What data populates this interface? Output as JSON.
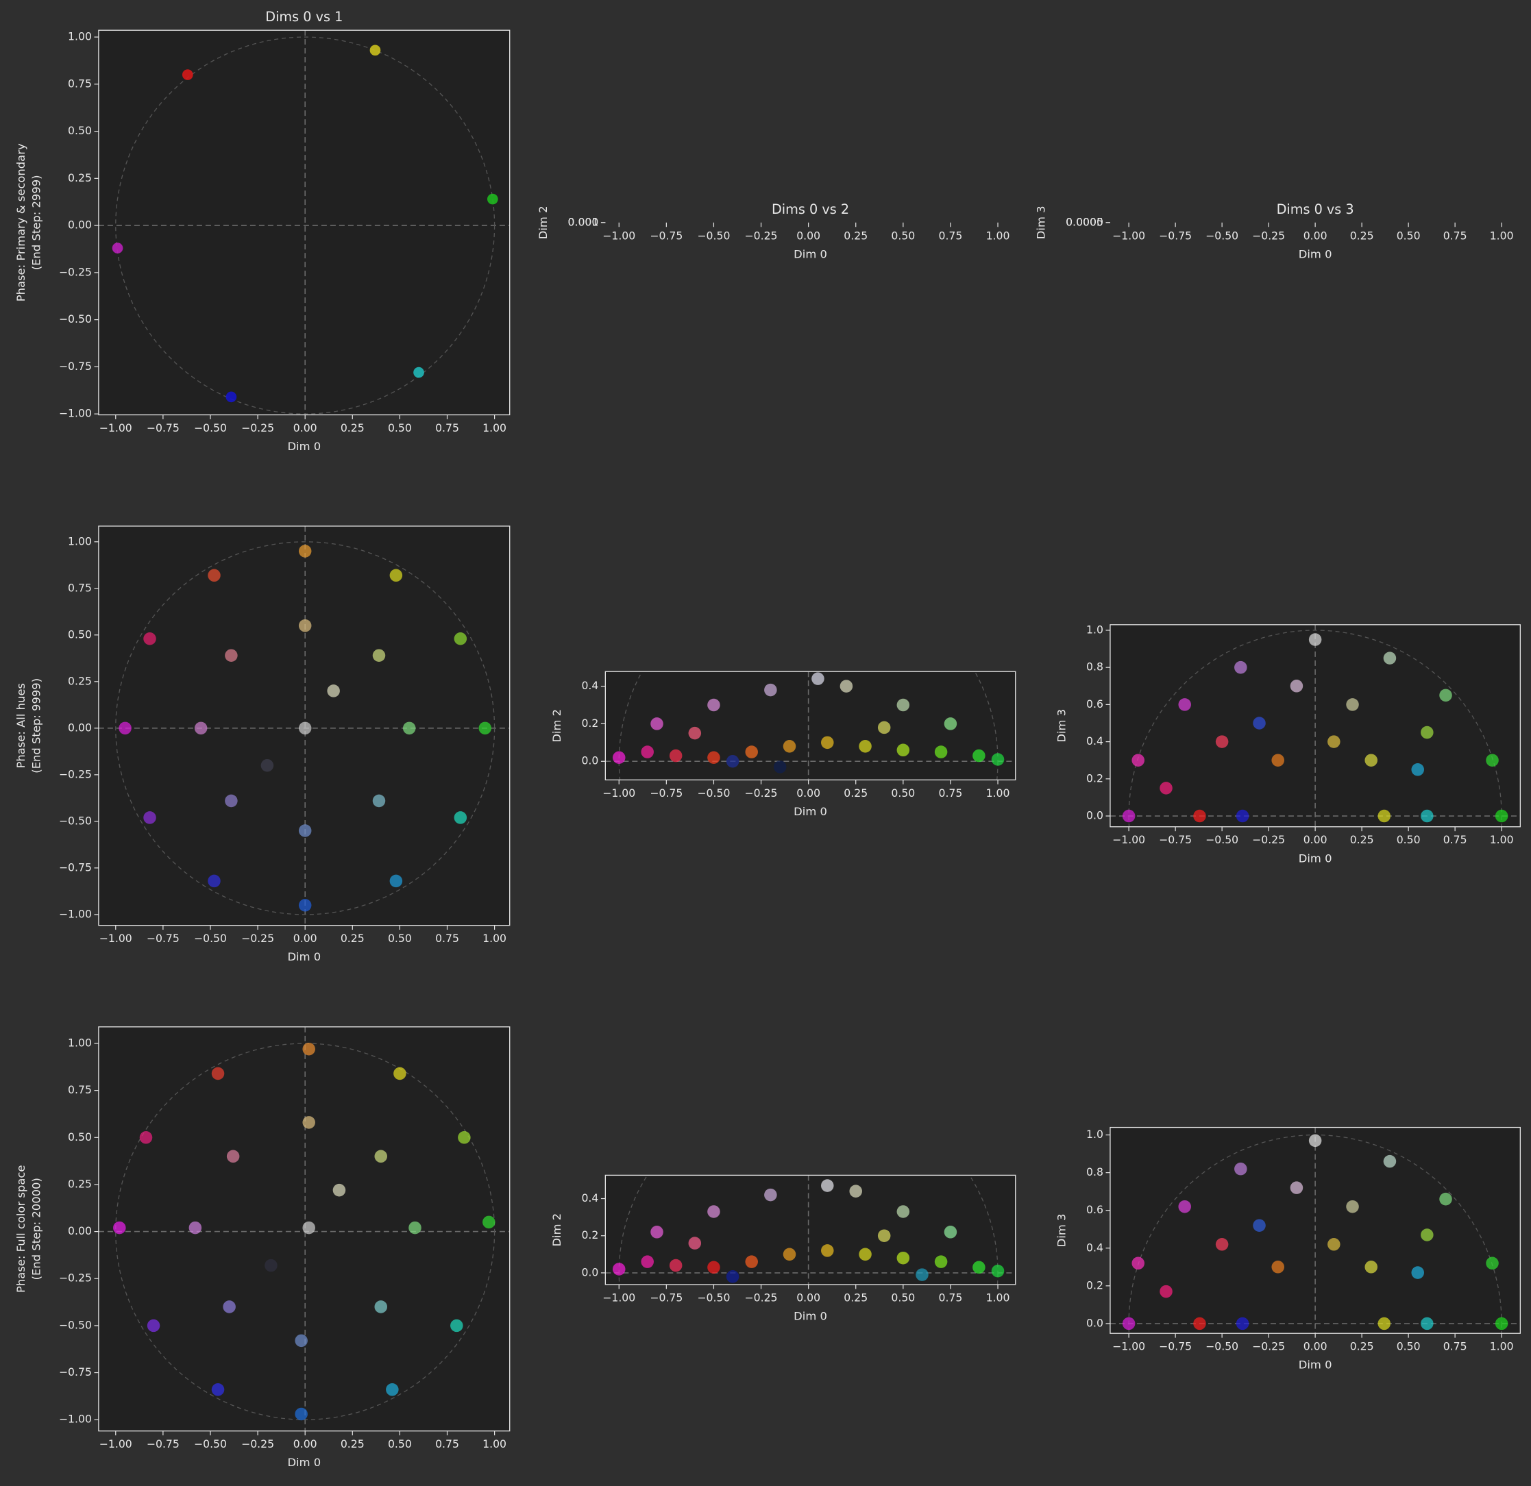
{
  "chart_data": [
    {
      "type": "scatter",
      "title": "Dims 0 vs 1",
      "xlabel": "Dim 0",
      "ylabel": [
        "Phase: Primary & secondary",
        "(End Step: 2999)"
      ],
      "xlim": [
        -1.09,
        1.08
      ],
      "ylim": [
        -1.005,
        1.036
      ],
      "xticks": [
        {
          "value": -1,
          "label": "−1.00"
        },
        {
          "value": -0.75,
          "label": "−0.75"
        },
        {
          "value": -0.5,
          "label": "−0.50"
        },
        {
          "value": -0.25,
          "label": "−0.25"
        },
        {
          "value": 0,
          "label": "0.00"
        },
        {
          "value": 0.25,
          "label": "0.25"
        },
        {
          "value": 0.5,
          "label": "0.50"
        },
        {
          "value": 0.75,
          "label": "0.75"
        },
        {
          "value": 1,
          "label": "1.00"
        }
      ],
      "yticks": [
        {
          "value": -1,
          "label": "−1.00"
        },
        {
          "value": -0.75,
          "label": "−0.75"
        },
        {
          "value": -0.5,
          "label": "−0.50"
        },
        {
          "value": -0.25,
          "label": "−0.25"
        },
        {
          "value": 0,
          "label": "0.00"
        },
        {
          "value": 0.25,
          "label": "0.25"
        },
        {
          "value": 0.5,
          "label": "0.50"
        },
        {
          "value": 0.75,
          "label": "0.75"
        },
        {
          "value": 1,
          "label": "1.00"
        }
      ],
      "x": [
        -0.62,
        0.37,
        0.99,
        -0.99,
        -0.39,
        0.6
      ],
      "y": [
        0.8,
        0.93,
        0.14,
        -0.12,
        -0.91,
        -0.78
      ],
      "colors": [
        "#e01818",
        "#d4c81c",
        "#1fc01f",
        "#c020c0",
        "#1414d0",
        "#20c0c0"
      ]
    },
    {
      "type": "scatter",
      "title": "Dims 0 vs 2",
      "xlabel": "Dim 0",
      "ylabel": "Dim 2",
      "xlim": [
        -1.072,
        1.093
      ],
      "ylim": [
        0,
        0.001
      ],
      "xticks": [
        {
          "value": -1,
          "label": "−1.00"
        },
        {
          "value": -0.75,
          "label": "−0.75"
        },
        {
          "value": -0.5,
          "label": "−0.50"
        },
        {
          "value": -0.25,
          "label": "−0.25"
        },
        {
          "value": 0,
          "label": "0.00"
        },
        {
          "value": 0.25,
          "label": "0.25"
        },
        {
          "value": 0.5,
          "label": "0.50"
        },
        {
          "value": 0.75,
          "label": "0.75"
        },
        {
          "value": 1,
          "label": "1.00"
        }
      ],
      "yticks": [
        {
          "value": 0,
          "label": "0.000"
        },
        {
          "value": 0.001,
          "label": "0.001"
        }
      ]
    },
    {
      "type": "scatter",
      "title": "Dims 0 vs 3",
      "xlabel": "Dim 0",
      "ylabel": "Dim 3",
      "xlim": [
        -1.1,
        1.1
      ],
      "ylim": [
        0,
        0.0005
      ],
      "xticks": [
        {
          "value": -1,
          "label": "−1.00"
        },
        {
          "value": -0.75,
          "label": "−0.75"
        },
        {
          "value": -0.5,
          "label": "−0.50"
        },
        {
          "value": -0.25,
          "label": "−0.25"
        },
        {
          "value": 0,
          "label": "0.00"
        },
        {
          "value": 0.25,
          "label": "0.25"
        },
        {
          "value": 0.5,
          "label": "0.50"
        },
        {
          "value": 0.75,
          "label": "0.75"
        },
        {
          "value": 1,
          "label": "1.00"
        }
      ],
      "yticks": [
        {
          "value": 0,
          "label": "0.0000"
        },
        {
          "value": 0.0005,
          "label": "0.0005"
        }
      ]
    },
    {
      "type": "scatter",
      "xlabel": "Dim 0",
      "ylabel": [
        "Phase: All hues",
        "(End Step: 9999)"
      ],
      "xlim": [
        -1.09,
        1.08
      ],
      "ylim": [
        -1.058,
        1.084
      ],
      "xticks": [
        {
          "value": -1,
          "label": "−1.00"
        },
        {
          "value": -0.75,
          "label": "−0.75"
        },
        {
          "value": -0.5,
          "label": "−0.50"
        },
        {
          "value": -0.25,
          "label": "−0.25"
        },
        {
          "value": 0,
          "label": "0.00"
        },
        {
          "value": 0.25,
          "label": "0.25"
        },
        {
          "value": 0.5,
          "label": "0.50"
        },
        {
          "value": 0.75,
          "label": "0.75"
        },
        {
          "value": 1,
          "label": "1.00"
        }
      ],
      "yticks": [
        {
          "value": -1,
          "label": "−1.00"
        },
        {
          "value": -0.75,
          "label": "−0.75"
        },
        {
          "value": -0.5,
          "label": "−0.50"
        },
        {
          "value": -0.25,
          "label": "−0.25"
        },
        {
          "value": 0,
          "label": "0.00"
        },
        {
          "value": 0.25,
          "label": "0.25"
        },
        {
          "value": 0.5,
          "label": "0.50"
        },
        {
          "value": 0.75,
          "label": "0.75"
        },
        {
          "value": 1,
          "label": "1.00"
        }
      ],
      "x": [
        0.95,
        0.82,
        0.48,
        0,
        -0.48,
        -0.82,
        -0.95,
        -0.82,
        -0.48,
        0,
        0.48,
        0.82,
        0.55,
        0.39,
        0,
        -0.39,
        -0.55,
        -0.39,
        0,
        0.39,
        0,
        0.15,
        -0.2
      ],
      "y": [
        0,
        0.48,
        0.82,
        0.95,
        0.82,
        0.48,
        0,
        -0.48,
        -0.82,
        -0.95,
        -0.82,
        -0.48,
        0,
        0.39,
        0.55,
        0.39,
        0,
        -0.39,
        -0.55,
        -0.39,
        0,
        0.2,
        -0.2
      ],
      "colors": [
        "#30e030",
        "#90e030",
        "#e0e020",
        "#f0a030",
        "#f05030",
        "#f02070",
        "#e020e0",
        "#9030e0",
        "#3030e0",
        "#2060e0",
        "#20a0e0",
        "#20e0c0",
        "#80e080",
        "#d0e080",
        "#e0c080",
        "#e08090",
        "#d080d0",
        "#9080d0",
        "#7090d0",
        "#80c0d0",
        "#d0d0d0",
        "#e0e0c0",
        "#404050"
      ]
    },
    {
      "type": "scatter",
      "xlabel": "Dim 0",
      "ylabel": "Dim 2",
      "xlim": [
        -1.072,
        1.093
      ],
      "ylim": [
        -0.099,
        0.478
      ],
      "xticks": [
        {
          "value": -1,
          "label": "−1.00"
        },
        {
          "value": -0.75,
          "label": "−0.75"
        },
        {
          "value": -0.5,
          "label": "−0.50"
        },
        {
          "value": -0.25,
          "label": "−0.25"
        },
        {
          "value": 0,
          "label": "0.00"
        },
        {
          "value": 0.25,
          "label": "0.25"
        },
        {
          "value": 0.5,
          "label": "0.50"
        },
        {
          "value": 0.75,
          "label": "0.75"
        },
        {
          "value": 1,
          "label": "1.00"
        }
      ],
      "yticks": [
        {
          "value": 0,
          "label": "0.0"
        },
        {
          "value": 0.2,
          "label": "0.2"
        },
        {
          "value": 0.4,
          "label": "0.4"
        }
      ],
      "x": [
        -1,
        -0.85,
        -0.7,
        -0.5,
        -0.3,
        -0.1,
        0.1,
        0.3,
        0.5,
        0.7,
        0.9,
        1,
        -0.8,
        -0.5,
        -0.2,
        0.05,
        0.2,
        0.5,
        0.75,
        -0.6,
        0.4,
        -0.15,
        -0.4
      ],
      "y": [
        0.02,
        0.05,
        0.03,
        0.02,
        0.05,
        0.08,
        0.1,
        0.08,
        0.06,
        0.05,
        0.03,
        0.01,
        0.2,
        0.3,
        0.38,
        0.44,
        0.4,
        0.3,
        0.2,
        0.15,
        0.18,
        -0.03,
        0
      ],
      "colors": [
        "#ff20e0",
        "#ff20a0",
        "#ff3050",
        "#ff4020",
        "#ff7020",
        "#f0a020",
        "#f0c020",
        "#e0e020",
        "#b0f020",
        "#70f020",
        "#30f030",
        "#20e040",
        "#f060e0",
        "#e090e0",
        "#d0b0e0",
        "#e0e0f0",
        "#e0e0c0",
        "#c0e0b0",
        "#90f090",
        "#ff6080",
        "#e0e060",
        "#102050",
        "#2030a0"
      ]
    },
    {
      "type": "scatter",
      "xlabel": "Dim 0",
      "ylabel": "Dim 3",
      "xlim": [
        -1.1,
        1.1
      ],
      "ylim": [
        -0.058,
        1.03
      ],
      "xticks": [
        {
          "value": -1,
          "label": "−1.00"
        },
        {
          "value": -0.75,
          "label": "−0.75"
        },
        {
          "value": -0.5,
          "label": "−0.50"
        },
        {
          "value": -0.25,
          "label": "−0.25"
        },
        {
          "value": 0,
          "label": "0.00"
        },
        {
          "value": 0.25,
          "label": "0.25"
        },
        {
          "value": 0.5,
          "label": "0.50"
        },
        {
          "value": 0.75,
          "label": "0.75"
        },
        {
          "value": 1,
          "label": "1.00"
        }
      ],
      "yticks": [
        {
          "value": 0,
          "label": "0.0"
        },
        {
          "value": 0.2,
          "label": "0.2"
        },
        {
          "value": 0.4,
          "label": "0.4"
        },
        {
          "value": 0.6,
          "label": "0.6"
        },
        {
          "value": 0.8,
          "label": "0.8"
        },
        {
          "value": 1,
          "label": "1.0"
        }
      ],
      "x": [
        -1,
        -0.62,
        -0.39,
        0.37,
        0.6,
        1,
        -0.95,
        -0.7,
        -0.4,
        0,
        0.4,
        0.7,
        0.95,
        -0.5,
        -0.2,
        0.1,
        0.3,
        0.55,
        -0.3,
        0.2,
        -0.1,
        0.6,
        -0.8
      ],
      "y": [
        0,
        0,
        0,
        0,
        0,
        0,
        0.3,
        0.6,
        0.8,
        0.95,
        0.85,
        0.65,
        0.3,
        0.4,
        0.3,
        0.4,
        0.3,
        0.25,
        0.5,
        0.6,
        0.7,
        0.45,
        0.15
      ],
      "colors": [
        "#e020e0",
        "#ff2020",
        "#2020e0",
        "#e0e020",
        "#20d0d0",
        "#20e020",
        "#ff30c0",
        "#e040e0",
        "#c080e0",
        "#e0e0e0",
        "#c0e0c0",
        "#80e080",
        "#30e030",
        "#ff4060",
        "#f08020",
        "#e0c040",
        "#e0e040",
        "#20b0e0",
        "#3050e0",
        "#d0d0a0",
        "#e0c0e0",
        "#a0e040",
        "#ff2080"
      ]
    },
    {
      "type": "scatter",
      "xlabel": "Dim 0",
      "ylabel": [
        "Phase: Full color space",
        "(End Step: 20000)"
      ],
      "xlim": [
        -1.09,
        1.08
      ],
      "ylim": [
        -1.06,
        1.088
      ],
      "xticks": [
        {
          "value": -1,
          "label": "−1.00"
        },
        {
          "value": -0.75,
          "label": "−0.75"
        },
        {
          "value": -0.5,
          "label": "−0.50"
        },
        {
          "value": -0.25,
          "label": "−0.25"
        },
        {
          "value": 0,
          "label": "0.00"
        },
        {
          "value": 0.25,
          "label": "0.25"
        },
        {
          "value": 0.5,
          "label": "0.50"
        },
        {
          "value": 0.75,
          "label": "0.75"
        },
        {
          "value": 1,
          "label": "1.00"
        }
      ],
      "yticks": [
        {
          "value": -1,
          "label": "−1.00"
        },
        {
          "value": -0.75,
          "label": "−0.75"
        },
        {
          "value": -0.5,
          "label": "−0.50"
        },
        {
          "value": -0.25,
          "label": "−0.25"
        },
        {
          "value": 0,
          "label": "0.00"
        },
        {
          "value": 0.25,
          "label": "0.25"
        },
        {
          "value": 0.5,
          "label": "0.50"
        },
        {
          "value": 0.75,
          "label": "0.75"
        },
        {
          "value": 1,
          "label": "1.00"
        }
      ],
      "x": [
        0.97,
        0.84,
        0.5,
        0.02,
        -0.46,
        -0.84,
        -0.98,
        -0.8,
        -0.46,
        -0.02,
        0.46,
        0.8,
        0.58,
        0.4,
        0.02,
        -0.38,
        -0.58,
        -0.4,
        -0.02,
        0.4,
        0.02,
        0.18,
        -0.18
      ],
      "y": [
        0.05,
        0.5,
        0.84,
        0.97,
        0.84,
        0.5,
        0.02,
        -0.5,
        -0.84,
        -0.97,
        -0.84,
        -0.5,
        0.02,
        0.4,
        0.58,
        0.4,
        0.02,
        -0.4,
        -0.58,
        -0.4,
        0.02,
        0.22,
        -0.18
      ],
      "colors": [
        "#30e030",
        "#a0e030",
        "#e8e020",
        "#f09030",
        "#f04030",
        "#f02080",
        "#f020f0",
        "#8030f0",
        "#3030f0",
        "#2070e0",
        "#20b0e0",
        "#20e0c0",
        "#80e080",
        "#d0e080",
        "#e0c080",
        "#e080a0",
        "#d080e0",
        "#9080e0",
        "#7090d0",
        "#80d0d0",
        "#d0d0d0",
        "#e0e0c0",
        "#303040"
      ]
    },
    {
      "type": "scatter",
      "xlabel": "Dim 0",
      "ylabel": "Dim 2",
      "xlim": [
        -1.072,
        1.093
      ],
      "ylim": [
        -0.063,
        0.526
      ],
      "xticks": [
        {
          "value": -1,
          "label": "−1.00"
        },
        {
          "value": -0.75,
          "label": "−0.75"
        },
        {
          "value": -0.5,
          "label": "−0.50"
        },
        {
          "value": -0.25,
          "label": "−0.25"
        },
        {
          "value": 0,
          "label": "0.00"
        },
        {
          "value": 0.25,
          "label": "0.25"
        },
        {
          "value": 0.5,
          "label": "0.50"
        },
        {
          "value": 0.75,
          "label": "0.75"
        },
        {
          "value": 1,
          "label": "1.00"
        }
      ],
      "yticks": [
        {
          "value": 0,
          "label": "0.0"
        },
        {
          "value": 0.2,
          "label": "0.2"
        },
        {
          "value": 0.4,
          "label": "0.4"
        }
      ],
      "x": [
        -1,
        -0.85,
        -0.7,
        -0.5,
        -0.3,
        -0.1,
        0.1,
        0.3,
        0.5,
        0.7,
        0.9,
        1,
        -0.8,
        -0.5,
        -0.2,
        0.1,
        0.25,
        0.5,
        0.75,
        -0.6,
        0.4,
        -0.4,
        0.6
      ],
      "y": [
        0.02,
        0.06,
        0.04,
        0.03,
        0.06,
        0.1,
        0.12,
        0.1,
        0.08,
        0.06,
        0.03,
        0.01,
        0.22,
        0.33,
        0.42,
        0.47,
        0.44,
        0.33,
        0.22,
        0.16,
        0.2,
        -0.02,
        -0.01
      ],
      "colors": [
        "#ff20e0",
        "#ff20b0",
        "#ff3060",
        "#ff2020",
        "#ff6020",
        "#f0a020",
        "#f0c020",
        "#e0e020",
        "#c0f020",
        "#80f020",
        "#30f030",
        "#20e040",
        "#f060e0",
        "#e090e0",
        "#d0b0e0",
        "#e8e8f0",
        "#e0e0c0",
        "#c0e0b0",
        "#90f0a0",
        "#ff6090",
        "#e0e060",
        "#1020a0",
        "#20a0c0"
      ]
    },
    {
      "type": "scatter",
      "xlabel": "Dim 0",
      "ylabel": "Dim 3",
      "xlim": [
        -1.1,
        1.1
      ],
      "ylim": [
        -0.052,
        1.04
      ],
      "xticks": [
        {
          "value": -1,
          "label": "−1.00"
        },
        {
          "value": -0.75,
          "label": "−0.75"
        },
        {
          "value": -0.5,
          "label": "−0.50"
        },
        {
          "value": -0.25,
          "label": "−0.25"
        },
        {
          "value": 0,
          "label": "0.00"
        },
        {
          "value": 0.25,
          "label": "0.25"
        },
        {
          "value": 0.5,
          "label": "0.50"
        },
        {
          "value": 0.75,
          "label": "0.75"
        },
        {
          "value": 1,
          "label": "1.00"
        }
      ],
      "yticks": [
        {
          "value": 0,
          "label": "0.0"
        },
        {
          "value": 0.2,
          "label": "0.2"
        },
        {
          "value": 0.4,
          "label": "0.4"
        },
        {
          "value": 0.6,
          "label": "0.6"
        },
        {
          "value": 0.8,
          "label": "0.8"
        },
        {
          "value": 1,
          "label": "1.0"
        }
      ],
      "x": [
        -1,
        -0.62,
        -0.39,
        0.37,
        0.6,
        1,
        -0.95,
        -0.7,
        -0.4,
        0,
        0.4,
        0.7,
        0.95,
        -0.5,
        -0.2,
        0.1,
        0.3,
        0.55,
        -0.3,
        0.2,
        -0.1,
        0.6,
        -0.8
      ],
      "y": [
        0,
        0,
        0,
        0,
        0,
        0,
        0.32,
        0.62,
        0.82,
        0.97,
        0.86,
        0.66,
        0.32,
        0.42,
        0.3,
        0.42,
        0.3,
        0.27,
        0.52,
        0.62,
        0.72,
        0.47,
        0.17
      ],
      "colors": [
        "#e020e0",
        "#ff2020",
        "#2020e0",
        "#e0e020",
        "#20d0d0",
        "#20e020",
        "#ff30c0",
        "#e040e0",
        "#c080e0",
        "#e8e8e8",
        "#c0e0d0",
        "#80e080",
        "#30e030",
        "#ff4060",
        "#f08020",
        "#e0c040",
        "#e0e040",
        "#20b0e0",
        "#3060e0",
        "#d0d0a0",
        "#e0c0e0",
        "#a0e040",
        "#ff2080"
      ]
    }
  ]
}
